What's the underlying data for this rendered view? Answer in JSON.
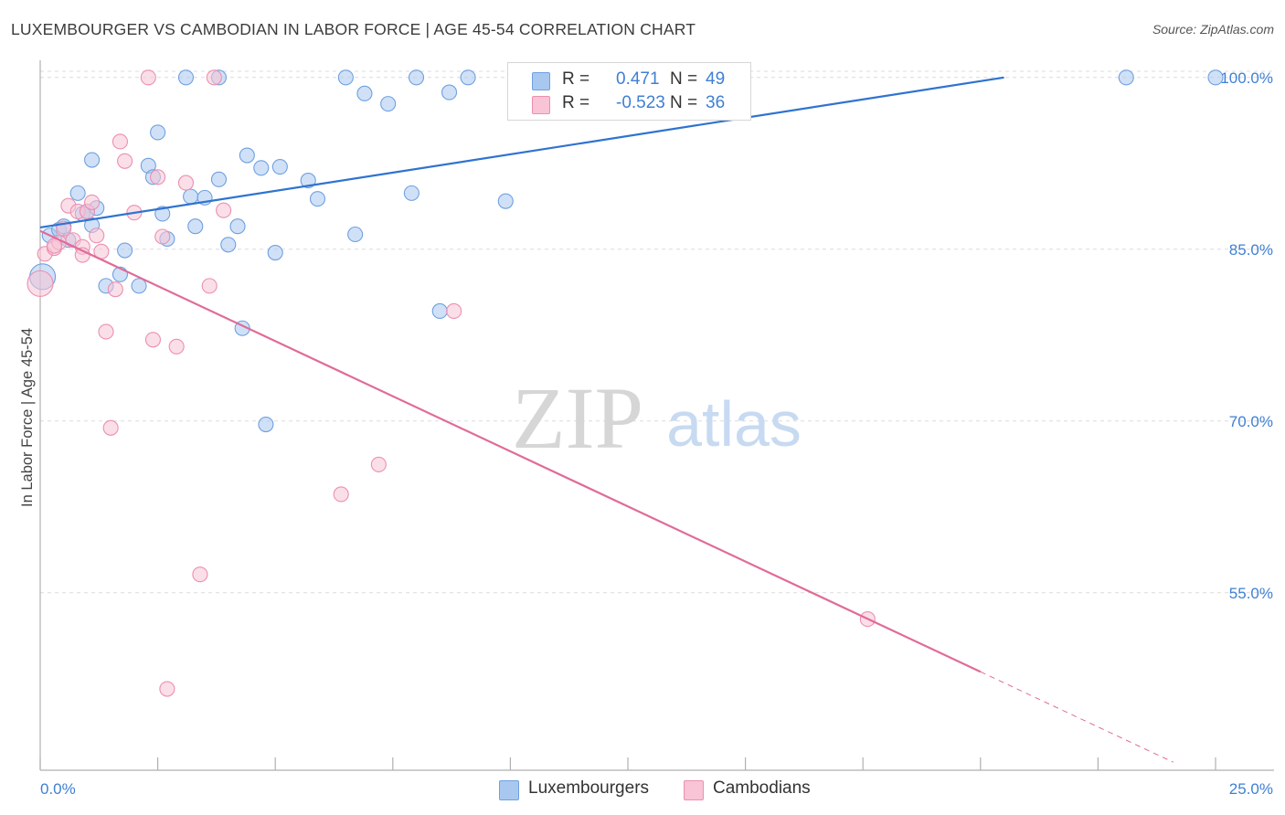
{
  "header": {
    "title": "LUXEMBOURGER VS CAMBODIAN IN LABOR FORCE | AGE 45-54 CORRELATION CHART",
    "source": "Source: ZipAtlas.com"
  },
  "watermark": {
    "zip": "ZIP",
    "atlas": "atlas"
  },
  "legend": {
    "rows": [
      {
        "r_label": "R =",
        "r_value": "0.471",
        "n_label": "N =",
        "n_value": "49",
        "color": "#a9c8f0",
        "border": "#6fa0e0"
      },
      {
        "r_label": "R =",
        "r_value": "-0.523",
        "n_label": "N =",
        "n_value": "36",
        "color": "#f8c4d6",
        "border": "#ec8fb0"
      }
    ]
  },
  "bottom_legend": [
    {
      "label": "Luxembourgers",
      "color": "#a9c8f0",
      "border": "#6fa0e0"
    },
    {
      "label": "Cambodians",
      "color": "#f8c4d6",
      "border": "#ec8fb0"
    }
  ],
  "chart_data": {
    "type": "scatter",
    "title": "LUXEMBOURGER VS CAMBODIAN IN LABOR FORCE | AGE 45-54 CORRELATION CHART",
    "xlabel": "",
    "ylabel": "In Labor Force | Age 45-54",
    "xlim": [
      0,
      25
    ],
    "ylim": [
      39.5,
      101.5
    ],
    "x_tick_labels": [
      "0.0%",
      "25.0%"
    ],
    "y_tick_labels": [
      "100.0%",
      "85.0%",
      "70.0%",
      "55.0%"
    ],
    "y_ticks": [
      100,
      85,
      70,
      55
    ],
    "grid": "horizontal dashed",
    "series": [
      {
        "name": "Luxembourgers",
        "color": "#6fa0e0",
        "fill": "#a9c8f0",
        "points": [
          [
            0.2,
            86.2
          ],
          [
            0.4,
            86.7
          ],
          [
            0.5,
            87.0
          ],
          [
            0.6,
            85.8
          ],
          [
            0.8,
            89.9
          ],
          [
            0.9,
            88.1
          ],
          [
            1.0,
            88.3
          ],
          [
            1.1,
            87.1
          ],
          [
            1.2,
            88.6
          ],
          [
            1.1,
            92.8
          ],
          [
            1.4,
            81.8
          ],
          [
            1.7,
            82.8
          ],
          [
            1.8,
            84.9
          ],
          [
            2.1,
            81.8
          ],
          [
            2.3,
            92.3
          ],
          [
            2.4,
            91.3
          ],
          [
            2.5,
            95.2
          ],
          [
            2.6,
            88.1
          ],
          [
            2.7,
            85.9
          ],
          [
            3.1,
            100.0
          ],
          [
            3.2,
            89.6
          ],
          [
            3.3,
            87.0
          ],
          [
            3.5,
            89.5
          ],
          [
            3.8,
            91.1
          ],
          [
            3.8,
            100.0
          ],
          [
            4.0,
            85.4
          ],
          [
            4.2,
            87.0
          ],
          [
            4.3,
            78.1
          ],
          [
            4.4,
            93.2
          ],
          [
            4.7,
            92.1
          ],
          [
            4.8,
            69.7
          ],
          [
            5.0,
            84.7
          ],
          [
            5.1,
            92.2
          ],
          [
            5.7,
            91.0
          ],
          [
            5.9,
            89.4
          ],
          [
            6.5,
            100.0
          ],
          [
            6.7,
            86.3
          ],
          [
            6.9,
            98.6
          ],
          [
            7.4,
            97.7
          ],
          [
            7.9,
            89.9
          ],
          [
            8.0,
            100.0
          ],
          [
            8.5,
            79.6
          ],
          [
            8.7,
            98.7
          ],
          [
            9.1,
            100.0
          ],
          [
            9.9,
            89.2
          ],
          [
            10.9,
            100.0
          ],
          [
            23.1,
            100.0
          ],
          [
            25.0,
            100.0
          ],
          [
            0.05,
            82.6
          ]
        ]
      },
      {
        "name": "Cambodians",
        "color": "#ec8fb0",
        "fill": "#f8c4d6",
        "points": [
          [
            0.1,
            84.6
          ],
          [
            0.3,
            85.1
          ],
          [
            0.4,
            85.6
          ],
          [
            0.5,
            86.8
          ],
          [
            0.6,
            88.8
          ],
          [
            0.7,
            85.8
          ],
          [
            0.8,
            88.3
          ],
          [
            0.9,
            85.2
          ],
          [
            0.9,
            84.5
          ],
          [
            1.0,
            88.3
          ],
          [
            1.1,
            89.1
          ],
          [
            1.2,
            86.2
          ],
          [
            1.3,
            84.8
          ],
          [
            1.4,
            77.8
          ],
          [
            1.5,
            69.4
          ],
          [
            1.6,
            81.5
          ],
          [
            1.7,
            94.4
          ],
          [
            1.8,
            92.7
          ],
          [
            2.0,
            88.2
          ],
          [
            2.3,
            100.0
          ],
          [
            2.4,
            77.1
          ],
          [
            2.5,
            91.3
          ],
          [
            2.6,
            86.1
          ],
          [
            2.7,
            46.6
          ],
          [
            2.9,
            76.5
          ],
          [
            3.1,
            90.8
          ],
          [
            3.4,
            56.6
          ],
          [
            3.6,
            81.8
          ],
          [
            3.7,
            100.0
          ],
          [
            3.9,
            88.4
          ],
          [
            6.4,
            63.6
          ],
          [
            7.2,
            66.2
          ],
          [
            8.8,
            79.6
          ],
          [
            17.6,
            52.7
          ],
          [
            0.0,
            82.0
          ],
          [
            0.3,
            85.3
          ]
        ]
      }
    ],
    "trend_lines": [
      {
        "series": "Luxembourgers",
        "from": [
          0.0,
          86.9
        ],
        "to": [
          20.5,
          100.0
        ],
        "style": "solid"
      },
      {
        "series": "Cambodians",
        "from": [
          0.0,
          86.6
        ],
        "to": [
          20.0,
          48.1
        ],
        "style": "solid"
      },
      {
        "series": "Cambodians",
        "from": [
          20.0,
          48.1
        ],
        "to": [
          24.1,
          40.2
        ],
        "style": "dashed"
      }
    ]
  }
}
